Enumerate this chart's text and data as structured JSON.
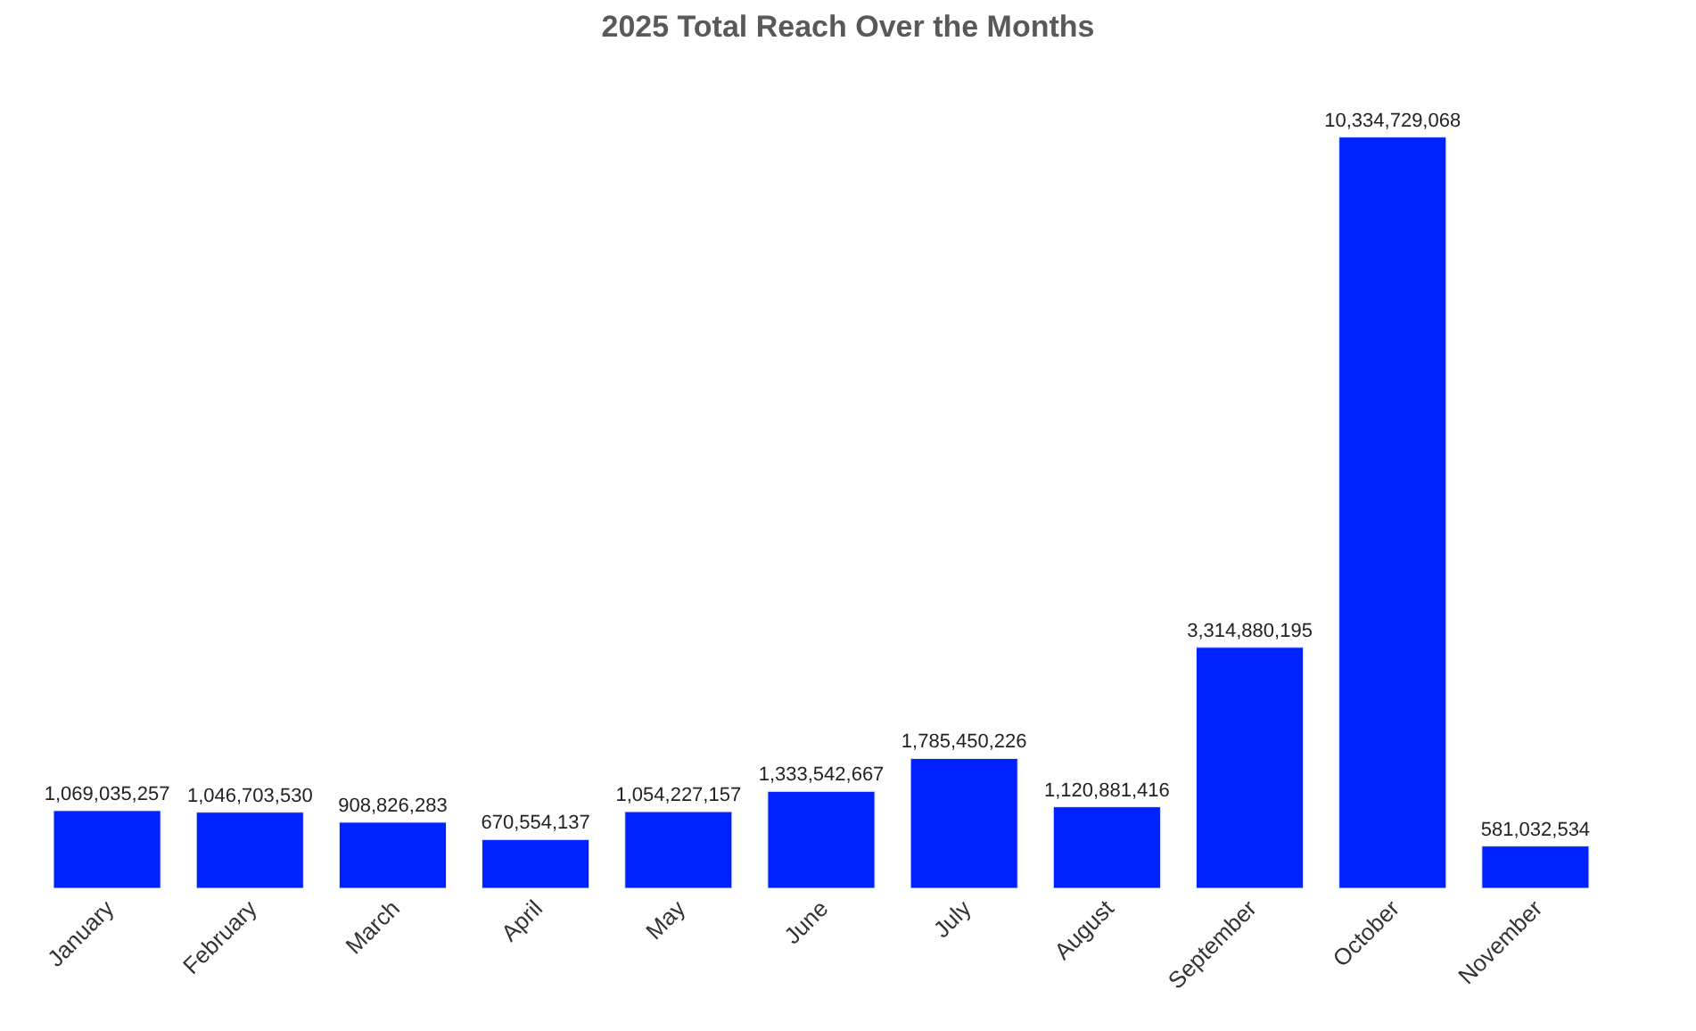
{
  "chart_data": {
    "type": "bar",
    "title": "2025 Total Reach Over the Months",
    "categories": [
      "January",
      "February",
      "March",
      "April",
      "May",
      "June",
      "July",
      "August",
      "September",
      "October",
      "November"
    ],
    "values": [
      1069035257,
      1046703530,
      908826283,
      670554137,
      1054227157,
      1333542667,
      1785450226,
      1120881416,
      3314880195,
      10334729068,
      581032534
    ],
    "value_labels": [
      "1,069,035,257",
      "1,046,703,530",
      "908,826,283",
      "670,554,137",
      "1,054,227,157",
      "1,333,542,667",
      "1,785,450,226",
      "1,120,881,416",
      "3,314,880,195",
      "10,334,729,068",
      "581,032,534"
    ],
    "color": "#0022ff"
  }
}
